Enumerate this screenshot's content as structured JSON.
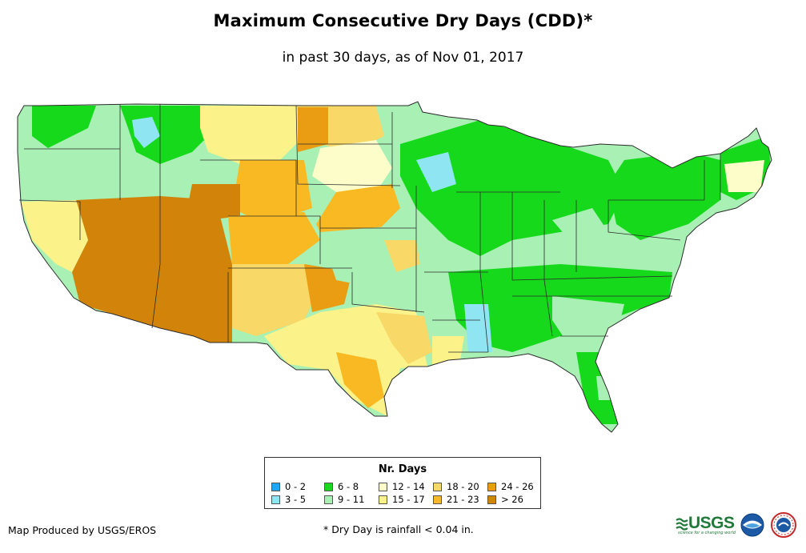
{
  "title": "Maximum Consecutive Dry Days (CDD)*",
  "subtitle": "in past 30 days, as of Nov 01, 2017",
  "legend": {
    "title": "Nr. Days",
    "items": [
      {
        "label": "0 - 2",
        "color": "#1ea6f0"
      },
      {
        "label": "3 - 5",
        "color": "#8fe6f2"
      },
      {
        "label": "6 - 8",
        "color": "#15d91a"
      },
      {
        "label": "9 - 11",
        "color": "#a8f0b4"
      },
      {
        "label": "12 - 14",
        "color": "#fdfdc9"
      },
      {
        "label": "15 - 17",
        "color": "#fbf28a"
      },
      {
        "label": "18 - 20",
        "color": "#f8d866"
      },
      {
        "label": "21 - 23",
        "color": "#f9b922"
      },
      {
        "label": "24 - 26",
        "color": "#ea9c12"
      },
      {
        "label": "> 26",
        "color": "#d1830a"
      }
    ]
  },
  "footer": {
    "credit": "Map Produced by USGS/EROS",
    "footnote": "* Dry Day is rainfall < 0.04 in."
  },
  "logos": {
    "usgs_text": "USGS",
    "usgs_tagline": "science for a changing world",
    "noaa_text": "NOAA",
    "nws_text": "NWS"
  },
  "colors": {
    "state_border": "#2b2b2b",
    "usgs_green": "#1f7a3a",
    "noaa_blue": "#1c5aa6"
  }
}
